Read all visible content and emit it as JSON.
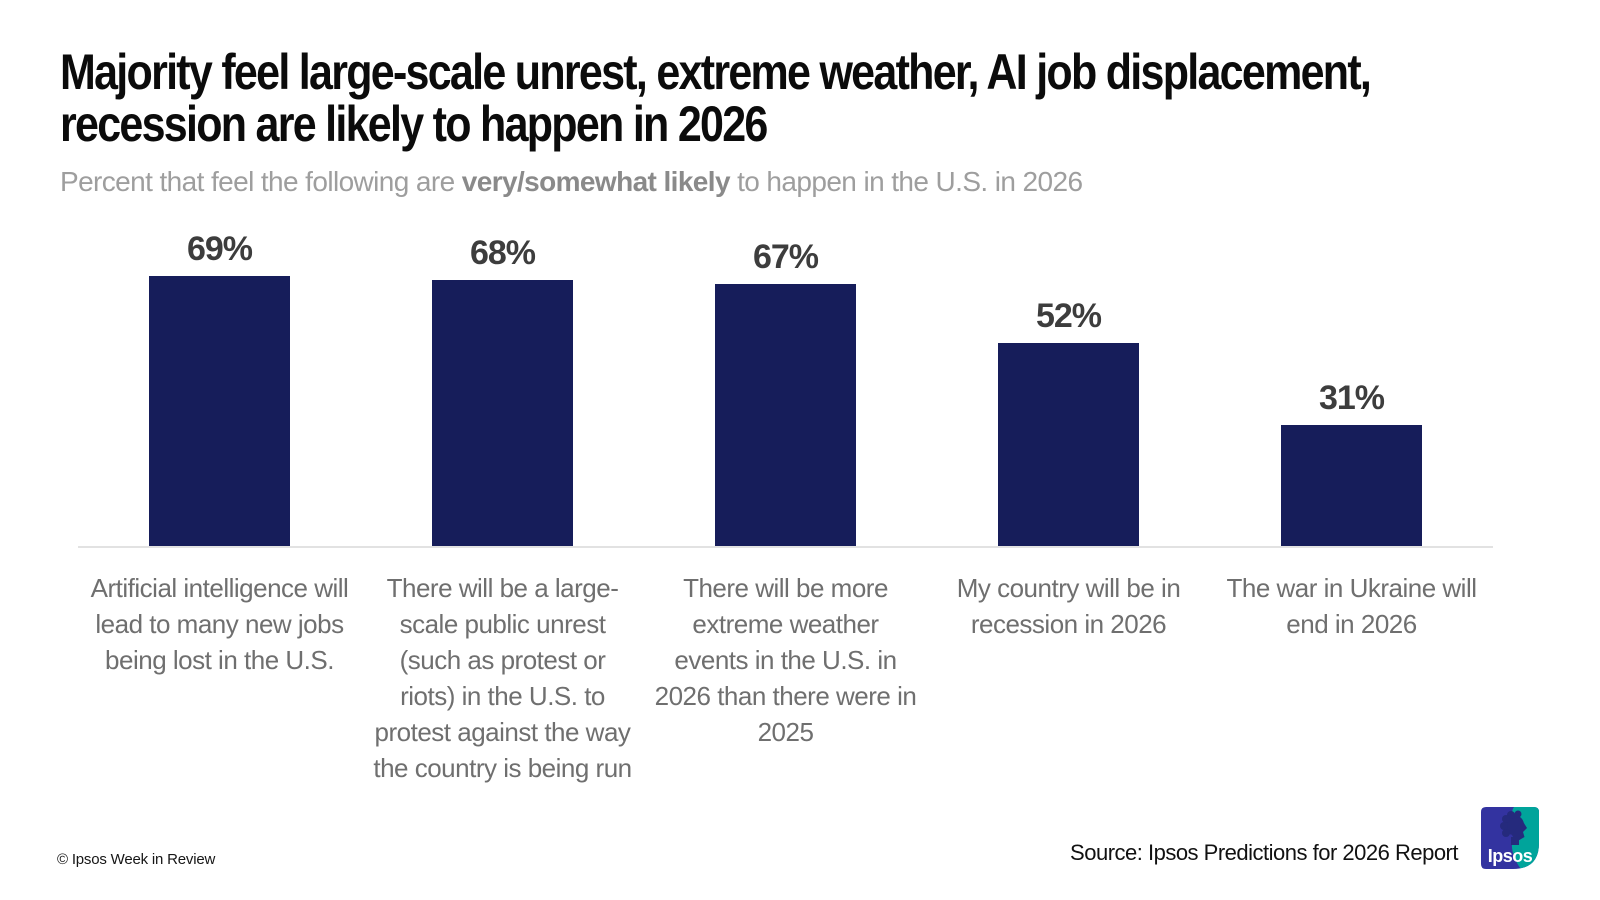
{
  "header": {
    "title_lines": [
      "Majority feel large-scale unrest, extreme weather, AI job displacement,",
      "recession are likely to happen in 2026"
    ],
    "subtitle": {
      "prefix": "Percent that feel the following are ",
      "bold": "very/somewhat likely",
      "suffix": " to happen in the U.S. in 2026"
    }
  },
  "chart_data": {
    "type": "bar",
    "title": "Majority feel large-scale unrest, extreme weather, AI job displacement, recession are likely to happen in 2026",
    "subtitle": "Percent that feel the following are very/somewhat likely to happen in the U.S. in 2026",
    "categories": [
      "Artificial intelligence will lead to many new jobs being lost in the U.S.",
      "There will be a large-scale public unrest (such as protest or riots) in the U.S. to protest against the way the country is being run",
      "There will be more extreme weather events in the U.S. in 2026 than there were in 2025",
      "My country will be in recession in 2026",
      "The war in Ukraine will end in 2026"
    ],
    "values": [
      69,
      68,
      67,
      52,
      31
    ],
    "value_labels": [
      "69%",
      "68%",
      "67%",
      "52%",
      "31%"
    ],
    "ylim": [
      0,
      100
    ],
    "grid": false,
    "legend": "none",
    "bar_color": "#161d5a",
    "value_label_color": "#3d3d3d",
    "axis_line_color": "#e2e2e2",
    "category_label_color": "#6f6f6f"
  },
  "footer": {
    "copyright": "© Ipsos Week in Review",
    "source": "Source: Ipsos Predictions for 2026 Report",
    "logo": {
      "text": "Ipsos",
      "blue": "#3333a0",
      "teal": "#00a49b",
      "face": "#252a7d"
    }
  }
}
